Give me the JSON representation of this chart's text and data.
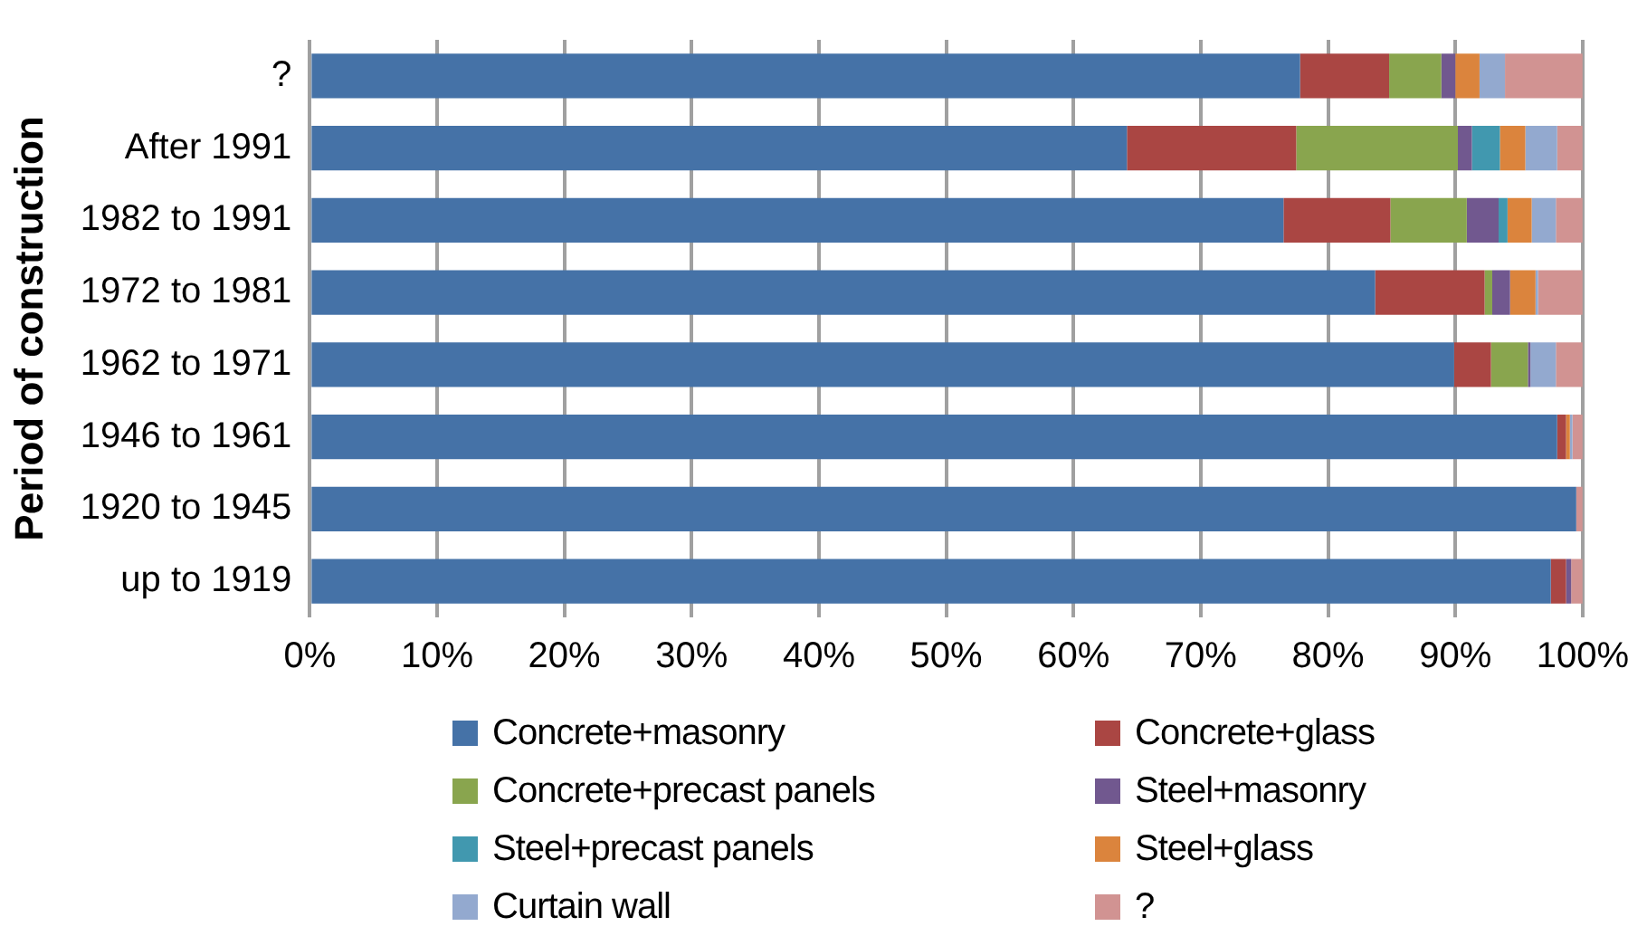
{
  "chart_data": {
    "type": "bar",
    "orientation": "horizontal",
    "stacked": true,
    "ylabel": "Period of construction",
    "categories": [
      "?",
      "After 1991",
      "1982 to 1991",
      "1972 to 1981",
      "1962 to 1971",
      "1946 to 1961",
      "1920 to 1945",
      "up to 1919"
    ],
    "xlim": [
      0,
      100
    ],
    "xticks": [
      {
        "value": 0,
        "label": "0%"
      },
      {
        "value": 10,
        "label": "10%"
      },
      {
        "value": 20,
        "label": "20%"
      },
      {
        "value": 30,
        "label": "30%"
      },
      {
        "value": 40,
        "label": "40%"
      },
      {
        "value": 50,
        "label": "50%"
      },
      {
        "value": 60,
        "label": "60%"
      },
      {
        "value": 70,
        "label": "70%"
      },
      {
        "value": 80,
        "label": "80%"
      },
      {
        "value": 90,
        "label": "90%"
      },
      {
        "value": 100,
        "label": "100%"
      }
    ],
    "grid": "x",
    "legend": "bottom",
    "series": [
      {
        "name": "Concrete+masonry",
        "color": "#4572a7",
        "values": [
          77.8,
          64.2,
          76.5,
          83.7,
          89.9,
          98.0,
          99.5,
          97.5
        ]
      },
      {
        "name": "Concrete+glass",
        "color": "#aa4643",
        "values": [
          7.0,
          13.3,
          8.4,
          8.6,
          2.9,
          0.7,
          0,
          1.2
        ]
      },
      {
        "name": "Concrete+precast panels",
        "color": "#89a54e",
        "values": [
          4.1,
          12.7,
          6.0,
          0.6,
          2.9,
          0,
          0,
          0
        ]
      },
      {
        "name": "Steel+masonry",
        "color": "#71588f",
        "values": [
          1.1,
          1.1,
          2.5,
          1.4,
          0.2,
          0,
          0,
          0.4
        ]
      },
      {
        "name": "Steel+precast panels",
        "color": "#4198af",
        "values": [
          0,
          2.2,
          0.7,
          0,
          0,
          0,
          0,
          0
        ]
      },
      {
        "name": "Steel+glass",
        "color": "#db843d",
        "values": [
          1.9,
          2.0,
          1.9,
          2.0,
          0,
          0.3,
          0,
          0
        ]
      },
      {
        "name": "Curtain wall",
        "color": "#93a9cf",
        "values": [
          2.0,
          2.5,
          1.9,
          0.2,
          2.0,
          0.2,
          0,
          0
        ]
      },
      {
        "name": "?",
        "color": "#d19392",
        "values": [
          6.1,
          2.0,
          2.1,
          3.5,
          2.1,
          0.8,
          0.5,
          0.9
        ]
      }
    ]
  }
}
